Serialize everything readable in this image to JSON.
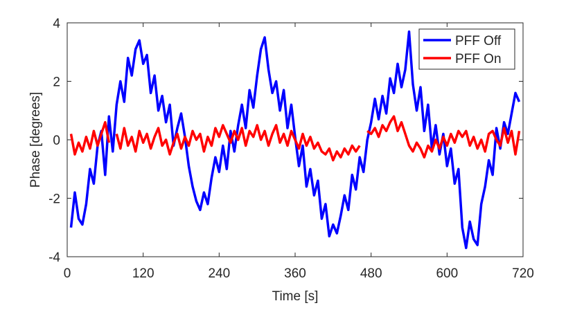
{
  "chart_data": {
    "type": "line",
    "xlabel": "Time [s]",
    "ylabel": "Phase [degrees]",
    "xlim": [
      0,
      720
    ],
    "xticks": [
      0,
      120,
      240,
      360,
      480,
      600,
      720
    ],
    "ylim": [
      -4,
      4
    ],
    "yticks": [
      -4,
      -2,
      0,
      2,
      4
    ],
    "legend": "upper right",
    "x": [
      6,
      12,
      18,
      24,
      30,
      36,
      42,
      48,
      54,
      60,
      66,
      72,
      78,
      84,
      90,
      96,
      102,
      108,
      114,
      120,
      126,
      132,
      138,
      144,
      150,
      156,
      162,
      168,
      174,
      180,
      186,
      192,
      198,
      204,
      210,
      216,
      222,
      228,
      234,
      240,
      246,
      252,
      258,
      264,
      270,
      276,
      282,
      288,
      294,
      300,
      306,
      312,
      318,
      324,
      330,
      336,
      342,
      348,
      354,
      360,
      366,
      372,
      378,
      384,
      390,
      396,
      402,
      408,
      414,
      420,
      426,
      432,
      438,
      444,
      450,
      456,
      462,
      468,
      474,
      480,
      486,
      492,
      498,
      504,
      510,
      516,
      522,
      528,
      534,
      540,
      546,
      552,
      558,
      564,
      570,
      576,
      582,
      588,
      594,
      600,
      606,
      612,
      618,
      624,
      630,
      636,
      642,
      648,
      654,
      660,
      666,
      672,
      678,
      684,
      690,
      696,
      702,
      708,
      714
    ],
    "series": [
      {
        "name": "PFF Off",
        "color": "#0000ff",
        "values": [
          -3.0,
          -1.8,
          -2.7,
          -2.9,
          -2.2,
          -1.0,
          -1.5,
          -0.2,
          0.3,
          -1.2,
          0.8,
          -0.4,
          1.2,
          2.0,
          1.3,
          2.8,
          2.2,
          3.1,
          3.4,
          2.6,
          2.9,
          1.6,
          2.2,
          1.0,
          1.5,
          0.6,
          1.2,
          -0.2,
          0.4,
          0.9,
          0.1,
          -0.9,
          -1.6,
          -2.1,
          -2.4,
          -1.8,
          -2.2,
          -1.3,
          -0.6,
          -1.1,
          -0.2,
          -1.0,
          0.3,
          -0.4,
          0.5,
          1.2,
          0.4,
          1.7,
          1.1,
          2.2,
          3.1,
          3.5,
          2.4,
          1.6,
          2.0,
          1.0,
          1.7,
          0.4,
          1.2,
          0.1,
          -0.9,
          -0.2,
          -1.6,
          -1.0,
          -1.9,
          -1.4,
          -2.7,
          -2.2,
          -3.3,
          -2.9,
          -3.2,
          -2.6,
          -1.9,
          -2.4,
          -1.2,
          -1.7,
          -0.6,
          -1.1,
          0.0,
          0.6,
          1.4,
          0.7,
          1.5,
          0.9,
          2.1,
          1.6,
          2.6,
          1.8,
          2.4,
          3.7,
          1.9,
          1.0,
          1.8,
          0.3,
          1.2,
          -0.3,
          0.5,
          -0.5,
          0.2,
          -0.9,
          -0.3,
          -1.5,
          -1.0,
          -3.0,
          -3.7,
          -2.8,
          -3.4,
          -3.6,
          -2.2,
          -1.6,
          -0.7,
          -1.2,
          0.4,
          -0.3,
          0.6,
          0.2,
          0.9,
          1.6,
          1.3
        ]
      },
      {
        "name": "PFF On",
        "color": "#ff0000",
        "values": [
          0.2,
          -0.5,
          -0.1,
          -0.4,
          0.1,
          -0.3,
          0.3,
          -0.2,
          0.2,
          0.6,
          -0.1,
          null,
          0.2,
          -0.3,
          0.4,
          -0.2,
          0.1,
          -0.4,
          0.3,
          -0.1,
          0.2,
          -0.3,
          0.1,
          0.4,
          -0.2,
          0.0,
          -0.5,
          -0.1,
          0.2,
          -0.3,
          0.1,
          -0.2,
          0.3,
          0.0,
          0.2,
          -0.4,
          0.1,
          -0.2,
          0.4,
          0.1,
          0.5,
          0.2,
          -0.1,
          0.3,
          0.0,
          0.4,
          -0.2,
          0.3,
          0.1,
          0.5,
          0.0,
          0.3,
          -0.2,
          0.2,
          0.5,
          -0.1,
          0.2,
          -0.2,
          0.3,
          0.0,
          -0.3,
          0.2,
          -0.2,
          0.1,
          -0.3,
          -0.1,
          -0.4,
          -0.5,
          -0.3,
          -0.7,
          -0.4,
          -0.6,
          -0.3,
          -0.5,
          -0.2,
          -0.4,
          -0.2,
          null,
          0.3,
          0.2,
          0.4,
          0.1,
          0.5,
          0.3,
          0.6,
          0.8,
          0.3,
          0.6,
          0.2,
          -0.2,
          -0.4,
          -0.1,
          -0.3,
          -0.6,
          -0.2,
          -0.4,
          0.0,
          -0.3,
          0.1,
          -0.2,
          0.2,
          -0.1,
          0.3,
          0.1,
          0.3,
          -0.2,
          0.1,
          -0.3,
          0.0,
          -0.4,
          0.2,
          0.3,
          0.0,
          -0.2,
          0.4,
          -0.1,
          0.3,
          -0.5,
          0.3
        ]
      }
    ]
  }
}
